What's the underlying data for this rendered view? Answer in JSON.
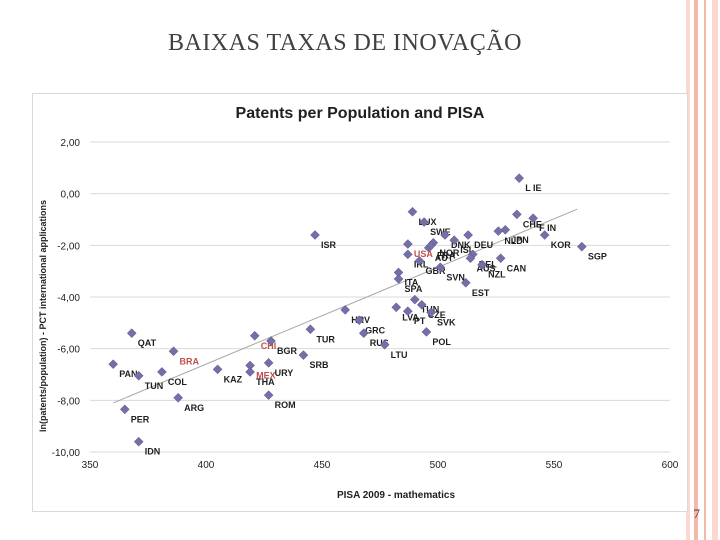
{
  "slide": {
    "title": "BAIXAS TAXAS DE INOVAÇÃO",
    "number": "7"
  },
  "colors": {
    "marker": "#7370a8",
    "highlight": "#c0504d",
    "label": "#1f1f1f",
    "trendline": "#a6a6a6",
    "gridline": "#d9d9d9",
    "stripe_dark": "#f4b8a8",
    "stripe_light": "#fbd9cf"
  },
  "chart_data": {
    "type": "scatter",
    "title": "Patents per Population and PISA",
    "xlabel": "PISA 2009 - mathematics",
    "ylabel": "ln(patents/population) - PCT international applications",
    "xlim": [
      350,
      600
    ],
    "ylim": [
      -10,
      2
    ],
    "x_ticks": [
      "350",
      "400",
      "450",
      "500",
      "550",
      "600"
    ],
    "y_ticks": [
      "2,00",
      "0,00",
      "-2,00",
      "-4,00",
      "-6,00",
      "-8,00",
      "-10,00"
    ],
    "gridlines": "horizontal",
    "trendline": {
      "x": [
        360,
        560
      ],
      "y": [
        -8.1,
        -0.6
      ]
    },
    "points": [
      {
        "label": "L IE",
        "x": 535,
        "y": 0.6
      },
      {
        "label": "CHE",
        "x": 534,
        "y": -0.8
      },
      {
        "label": "F IN",
        "x": 541,
        "y": -0.95
      },
      {
        "label": "SGP",
        "x": 562,
        "y": -2.05
      },
      {
        "label": "KOR",
        "x": 546,
        "y": -1.6
      },
      {
        "label": "JPN",
        "x": 529,
        "y": -1.4
      },
      {
        "label": "NLD",
        "x": 526,
        "y": -1.45
      },
      {
        "label": "LUX",
        "x": 489,
        "y": -0.7
      },
      {
        "label": "SWE",
        "x": 494,
        "y": -1.1
      },
      {
        "label": "DNK",
        "x": 503,
        "y": -1.6
      },
      {
        "label": "NOR",
        "x": 498,
        "y": -1.9
      },
      {
        "label": "ISL",
        "x": 507,
        "y": -1.8
      },
      {
        "label": "DEU",
        "x": 513,
        "y": -1.6
      },
      {
        "label": "AUT",
        "x": 496,
        "y": -2.1
      },
      {
        "label": "FRA",
        "x": 497,
        "y": -2.0
      },
      {
        "label": "BEL",
        "x": 515,
        "y": -2.35
      },
      {
        "label": "AUS",
        "x": 514,
        "y": -2.5
      },
      {
        "label": "CAN",
        "x": 527,
        "y": -2.5
      },
      {
        "label": "USA",
        "x": 487,
        "y": -1.95,
        "highlight": true
      },
      {
        "label": "ISR",
        "x": 447,
        "y": -1.6
      },
      {
        "label": "IRL",
        "x": 487,
        "y": -2.35
      },
      {
        "label": "GBR",
        "x": 492,
        "y": -2.6
      },
      {
        "label": "ITA",
        "x": 483,
        "y": -3.05
      },
      {
        "label": "SPA",
        "x": 483,
        "y": -3.3
      },
      {
        "label": "SVN",
        "x": 501,
        "y": -2.85
      },
      {
        "label": "NZL",
        "x": 519,
        "y": -2.75
      },
      {
        "label": "EST",
        "x": 512,
        "y": -3.45
      },
      {
        "label": "HRV",
        "x": 460,
        "y": -4.5
      },
      {
        "label": "LVA",
        "x": 482,
        "y": -4.4
      },
      {
        "label": "TUN",
        "x": 490,
        "y": -4.1
      },
      {
        "label": "CZE",
        "x": 493,
        "y": -4.3
      },
      {
        "label": "SVK",
        "x": 497,
        "y": -4.6
      },
      {
        "label": "PT",
        "x": 487,
        "y": -4.55
      },
      {
        "label": "GRC",
        "x": 466,
        "y": -4.9
      },
      {
        "label": "POL",
        "x": 495,
        "y": -5.35
      },
      {
        "label": "RUS",
        "x": 468,
        "y": -5.4
      },
      {
        "label": "LTU",
        "x": 477,
        "y": -5.85
      },
      {
        "label": "TUR",
        "x": 445,
        "y": -5.25
      },
      {
        "label": "CHI",
        "x": 421,
        "y": -5.5,
        "highlight": true
      },
      {
        "label": "BGR",
        "x": 428,
        "y": -5.7
      },
      {
        "label": "MEX",
        "x": 419,
        "y": -6.65,
        "highlight": true
      },
      {
        "label": "URY",
        "x": 427,
        "y": -6.55
      },
      {
        "label": "SRB",
        "x": 442,
        "y": -6.25
      },
      {
        "label": "THA",
        "x": 419,
        "y": -6.9
      },
      {
        "label": "KAZ",
        "x": 405,
        "y": -6.8
      },
      {
        "label": "ROM",
        "x": 427,
        "y": -7.8
      },
      {
        "label": "QAT",
        "x": 368,
        "y": -5.4
      },
      {
        "label": "BRA",
        "x": 386,
        "y": -6.1,
        "highlight": true
      },
      {
        "label": "PAN",
        "x": 360,
        "y": -6.6
      },
      {
        "label": "TUN",
        "x": 371,
        "y": -7.05
      },
      {
        "label": "COL",
        "x": 381,
        "y": -6.9
      },
      {
        "label": "ARG",
        "x": 388,
        "y": -7.9
      },
      {
        "label": "PER",
        "x": 365,
        "y": -8.35
      },
      {
        "label": "IDN",
        "x": 371,
        "y": -9.6
      }
    ]
  }
}
